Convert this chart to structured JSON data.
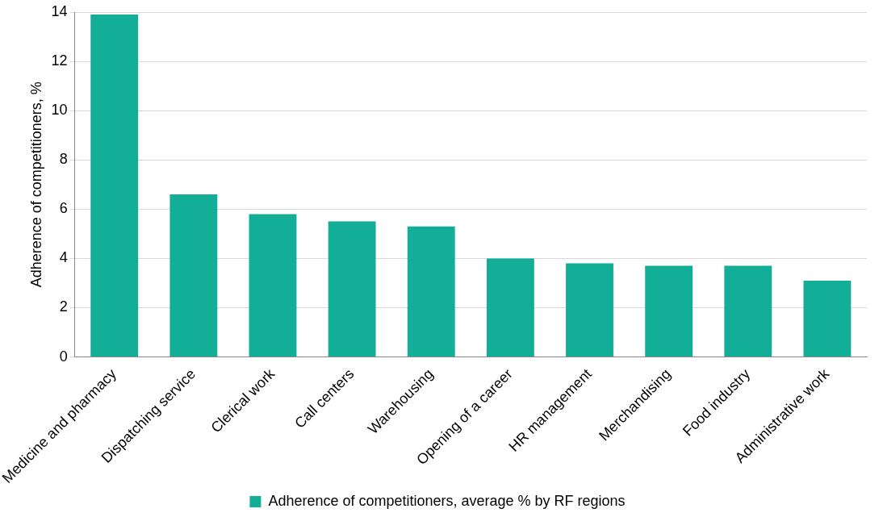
{
  "chart_data": {
    "type": "bar",
    "ylabel": "Adherence of competitioners, %",
    "categories": [
      "Medicine and pharmacy",
      "Dispatching service",
      "Clerical work",
      "Call centers",
      "Warehousing",
      "Opening of a career",
      "HR management",
      "Merchandising",
      "Food industry",
      "Administrative work"
    ],
    "series": [
      {
        "name": "Adherence of competitioners, average % by RF regions",
        "color": "#13ae97",
        "values": [
          13.9,
          6.6,
          5.8,
          5.5,
          5.3,
          4.0,
          3.8,
          3.7,
          3.7,
          3.1
        ]
      }
    ],
    "ylim": [
      0,
      14
    ],
    "yticks": [
      0,
      2,
      4,
      6,
      8,
      10,
      12,
      14
    ],
    "grid": "y",
    "legend": "bottom"
  }
}
